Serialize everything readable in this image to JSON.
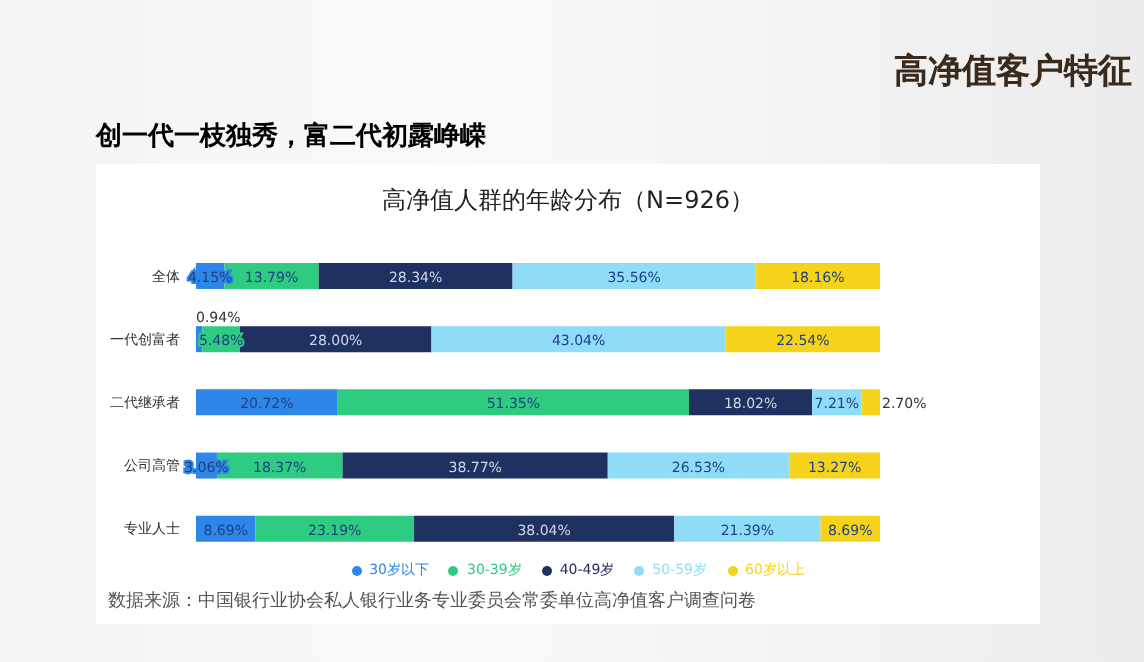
{
  "chart_data": {
    "type": "bar",
    "orientation": "horizontal",
    "stacked": true,
    "title": "高净值人群的年龄分布（N=926）",
    "annotations": [
      "高净值客户特征",
      "创一代一枝独秀，富二代初露峥嵘",
      "数据来源：中国银行业协会私人银行业务专业委员会常委单位高净值客户调查问卷"
    ],
    "categories": [
      "全体",
      "一代创富者",
      "二代继承者",
      "公司高管",
      "专业人士"
    ],
    "series": [
      {
        "name": "30岁以下",
        "color": "#2e86e8",
        "values": [
          4.15,
          0.94,
          20.72,
          3.06,
          8.69
        ],
        "value_labels": [
          "4.15%",
          "0.94%",
          "20.72%",
          "3.06%",
          "8.69%"
        ]
      },
      {
        "name": "30-39岁",
        "color": "#2ecc80",
        "values": [
          13.79,
          5.48,
          51.35,
          18.37,
          23.19
        ],
        "value_labels": [
          "13.79%",
          "5.48%",
          "51.35%",
          "18.37%",
          "23.19%"
        ]
      },
      {
        "name": "40-49岁",
        "color": "#1f3160",
        "values": [
          28.34,
          28.0,
          18.02,
          38.77,
          38.04
        ],
        "value_labels": [
          "28.34%",
          "28.00%",
          "18.02%",
          "38.77%",
          "38.04%"
        ]
      },
      {
        "name": "50-59岁",
        "color": "#8fdcf7",
        "values": [
          35.56,
          43.04,
          7.21,
          26.53,
          21.39
        ],
        "value_labels": [
          "35.56%",
          "43.04%",
          "7.21%",
          "26.53%",
          "21.39%"
        ]
      },
      {
        "name": "60岁以上",
        "color": "#f5d31a",
        "values": [
          18.16,
          22.54,
          2.7,
          13.27,
          8.69
        ],
        "value_labels": [
          "18.16%",
          "22.54%",
          "2.70%",
          "13.27%",
          "8.69%"
        ]
      }
    ],
    "legend": "bottom",
    "tick_labels": "y"
  }
}
